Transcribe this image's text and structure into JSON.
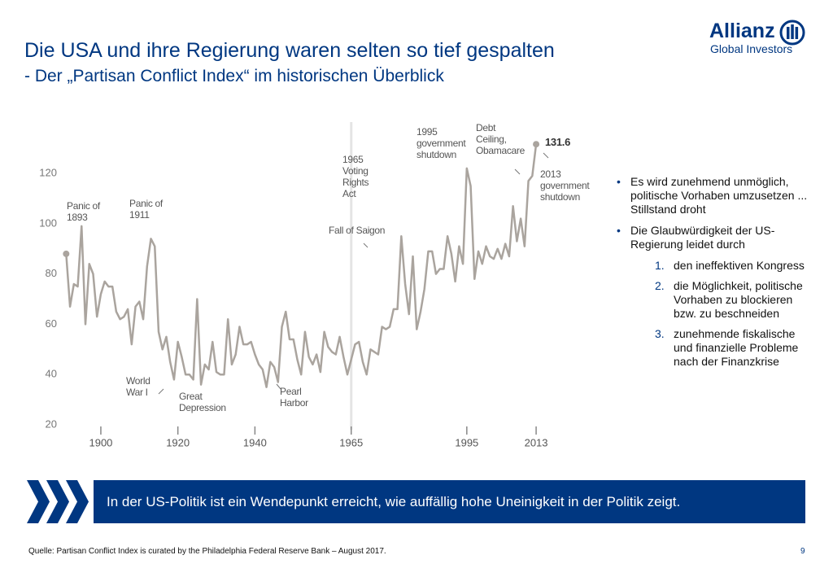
{
  "header": {
    "title": "Die USA und ihre Regierung waren selten so tief gespalten",
    "subtitle": "- Der „Partisan Conflict Index“ im historischen Überblick"
  },
  "logo": {
    "brand": "Allianz",
    "sub": "Global Investors"
  },
  "chart_data": {
    "type": "line",
    "color": "#aaa49e",
    "highlight_x": 1965,
    "x": [
      1891,
      1892,
      1893,
      1894,
      1895,
      1896,
      1897,
      1898,
      1899,
      1900,
      1901,
      1902,
      1903,
      1904,
      1905,
      1906,
      1907,
      1908,
      1909,
      1910,
      1911,
      1912,
      1913,
      1914,
      1915,
      1916,
      1917,
      1918,
      1919,
      1920,
      1921,
      1922,
      1923,
      1924,
      1925,
      1926,
      1927,
      1928,
      1929,
      1930,
      1931,
      1932,
      1933,
      1934,
      1935,
      1936,
      1937,
      1938,
      1939,
      1940,
      1941,
      1942,
      1943,
      1944,
      1945,
      1946,
      1947,
      1948,
      1949,
      1950,
      1951,
      1952,
      1953,
      1954,
      1955,
      1956,
      1957,
      1958,
      1959,
      1960,
      1961,
      1962,
      1963,
      1964,
      1965,
      1966,
      1967,
      1968,
      1969,
      1970,
      1971,
      1972,
      1973,
      1974,
      1975,
      1976,
      1977,
      1978,
      1979,
      1980,
      1981,
      1982,
      1983,
      1984,
      1985,
      1986,
      1987,
      1988,
      1989,
      1990,
      1991,
      1992,
      1993,
      1994,
      1995,
      1996,
      1997,
      1998,
      1999,
      2000,
      2001,
      2002,
      2003,
      2004,
      2005,
      2006,
      2007,
      2008,
      2009,
      2010,
      2011,
      2012,
      2013
    ],
    "values": [
      88,
      67,
      76,
      75,
      99,
      60,
      84,
      80,
      63,
      72,
      77,
      75,
      75,
      65,
      62,
      63,
      66,
      52,
      67,
      69,
      62,
      83,
      94,
      91,
      57,
      50,
      55,
      45,
      38,
      53,
      47,
      40,
      40,
      38,
      70,
      36,
      44,
      42,
      53,
      41,
      40,
      40,
      62,
      44,
      48,
      59,
      52,
      52,
      53,
      48,
      44,
      42,
      35,
      45,
      43,
      37,
      59,
      65,
      54,
      54,
      46,
      40,
      57,
      47,
      44,
      48,
      41,
      57,
      51,
      49,
      48,
      55,
      47,
      40,
      46,
      52,
      53,
      45,
      40,
      50,
      49,
      48,
      59,
      58,
      59,
      66,
      66,
      95,
      76,
      64,
      87,
      58,
      65,
      74,
      89,
      89,
      80,
      82,
      82,
      95,
      88,
      77,
      91,
      84,
      122,
      115,
      78,
      89,
      84,
      91,
      87,
      86,
      90,
      86,
      92,
      87,
      107,
      93,
      102,
      91,
      117,
      119,
      131.6
    ],
    "xlim": [
      1890,
      2014
    ],
    "xticks": [
      1900,
      1920,
      1940,
      1965,
      1995,
      2013
    ],
    "ylim": [
      18,
      136
    ],
    "yticks": [
      20,
      40,
      60,
      80,
      100,
      120
    ],
    "annotations": [
      "Panic of\n1893",
      "Panic of\n1911",
      "World\nWar I",
      "Great\nDepression",
      "Pearl\nHarbor",
      "1965\nVoting\nRights\nAct",
      "Fall of Saigon",
      "1995\ngovernment\nshutdown",
      "Debt\nCeiling,\nObamacare",
      "2013\ngovernment\nshutdown"
    ]
  },
  "bullets": [
    "Es wird zunehmend unmöglich, politische Vorhaben umzusetzen ... Stillstand droht",
    "Die Glaubwürdigkeit der US-Regierung leidet durch"
  ],
  "numbered": [
    {
      "number": "1.",
      "text": "den ineffektiven Kongress"
    },
    {
      "number": "2.",
      "text": "die Möglichkeit, politische Vorhaben zu blockieren bzw. zu beschneiden"
    },
    {
      "number": "3.",
      "text": "zunehmende fiskalische und finanzielle Probleme nach der Finanzkrise"
    }
  ],
  "banner": "In der US-Politik ist ein Wendepunkt erreicht, wie auffällig hohe Uneinigkeit in der Politik zeigt.",
  "footer": {
    "source": "Quelle: Partisan Conflict Index is curated by the Philadelphia Federal Reserve Bank – August 2017.",
    "page": "9"
  }
}
